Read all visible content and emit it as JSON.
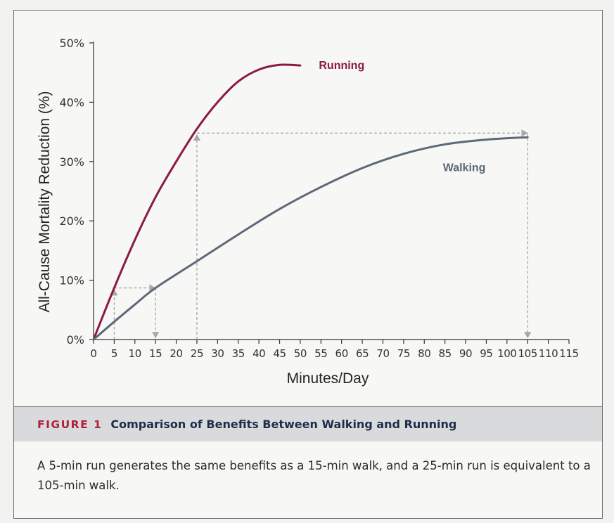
{
  "chart_data": {
    "type": "line",
    "xlabel": "Minutes/Day",
    "ylabel": "All-Cause Mortality Reduction (%)",
    "xlim": [
      0,
      115
    ],
    "ylim": [
      0,
      50
    ],
    "xticks": [
      0,
      5,
      10,
      15,
      20,
      25,
      30,
      35,
      40,
      45,
      50,
      55,
      60,
      65,
      70,
      75,
      80,
      85,
      90,
      95,
      100,
      105,
      110,
      115
    ],
    "yticks": [
      0,
      10,
      20,
      30,
      40,
      50
    ],
    "ytick_labels": [
      "0%",
      "10%",
      "20%",
      "30%",
      "40%",
      "50%"
    ],
    "grid": false,
    "series": [
      {
        "name": "Running",
        "color": "#8b1a42",
        "x": [
          0,
          5,
          10,
          15,
          20,
          25,
          30,
          35,
          40,
          45,
          50
        ],
        "y": [
          0,
          8.7,
          16.8,
          24.0,
          30.0,
          35.5,
          40.0,
          43.5,
          45.5,
          46.3,
          46.2
        ]
      },
      {
        "name": "Walking",
        "color": "#5d6878",
        "x": [
          0,
          5,
          10,
          15,
          25,
          35,
          45,
          55,
          65,
          75,
          85,
          95,
          105
        ],
        "y": [
          0,
          3.0,
          5.9,
          8.7,
          13.2,
          17.7,
          22.0,
          25.7,
          28.9,
          31.3,
          32.9,
          33.7,
          34.1
        ]
      }
    ],
    "annotations": [
      {
        "type": "equivalence",
        "run_minutes": 5,
        "walk_minutes": 15,
        "y": 8.7
      },
      {
        "type": "equivalence",
        "run_minutes": 25,
        "walk_minutes": 105,
        "y": 34.8
      }
    ]
  },
  "figure": {
    "label": "FIGURE 1",
    "title": "Comparison of Benefits Between Walking and Running",
    "caption": "A 5-min run generates the same benefits as a 15-min walk, and a 25-min run is equivalent to a 105-min walk."
  }
}
